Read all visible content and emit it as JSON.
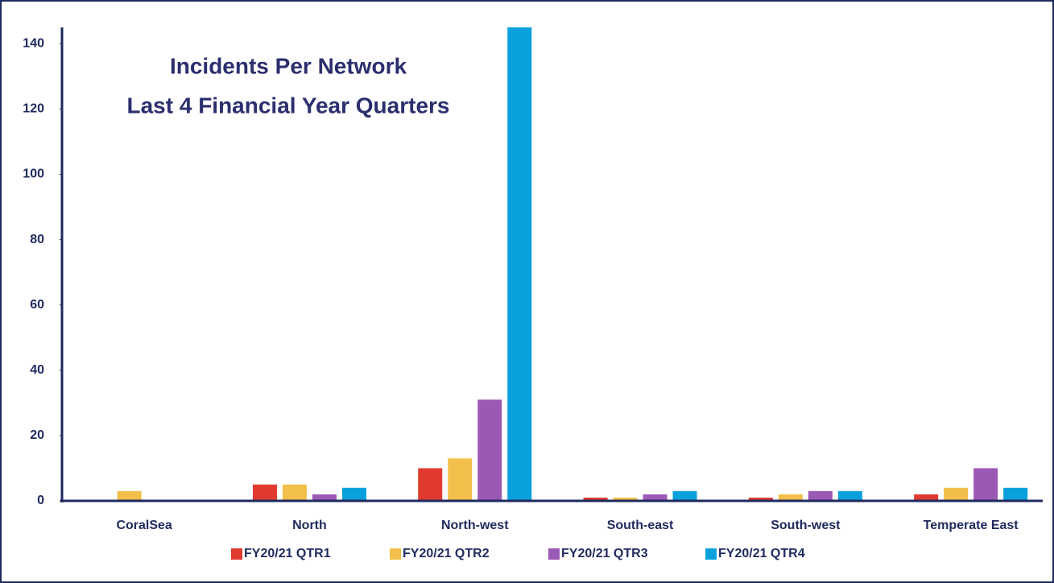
{
  "chart_data": {
    "type": "bar",
    "title": "Incidents Per Network",
    "subtitle": "Last 4 Financial Year Quarters",
    "categories": [
      "CoralSea",
      "North",
      "North-west",
      "South-east",
      "South-west",
      "Temperate East"
    ],
    "series": [
      {
        "name": "FY20/21 QTR1",
        "color": "#e03a2f",
        "values": [
          0,
          5,
          10,
          1,
          1,
          2
        ]
      },
      {
        "name": "FY20/21 QTR2",
        "color": "#f2bf4a",
        "values": [
          3,
          5,
          13,
          1,
          2,
          4
        ]
      },
      {
        "name": "FY20/21 QTR3",
        "color": "#9b59b6",
        "values": [
          0,
          2,
          31,
          2,
          3,
          10
        ]
      },
      {
        "name": "FY20/21 QTR4",
        "color": "#0aa0dc",
        "values": [
          0,
          4,
          145,
          3,
          3,
          4
        ]
      }
    ],
    "ylim": [
      0,
      145
    ],
    "yticks": [
      0,
      20,
      40,
      60,
      80,
      100,
      120,
      140
    ],
    "legend": "bottom"
  }
}
